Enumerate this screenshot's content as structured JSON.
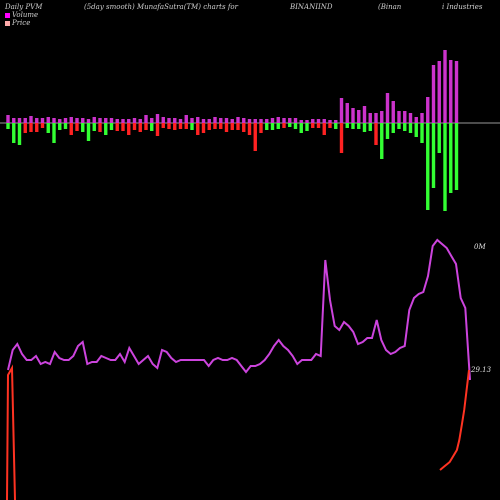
{
  "header": {
    "t1": "Daily PVM",
    "t2": "(5day smooth) MunafaSutra(TM) charts for",
    "t3": "BINANIIND",
    "t4": "(Binan",
    "t5": "i  Industries"
  },
  "legend": {
    "volume_label": "Volume",
    "price_label": "Price"
  },
  "colors": {
    "background": "#000000",
    "volume_legend": "#ff00ff",
    "price_legend": "#ffaaaa",
    "bar_magenta": "#cc33cc",
    "bar_green": "#33ff33",
    "bar_red": "#ff2222",
    "volume_line": "#cc44dd",
    "price_line": "#ff3322",
    "baseline": "#cccccc"
  },
  "chart_data": {
    "type": "bar",
    "title": "Daily PVM (5day smooth) MunafaSutra(TM) charts for BINANIIND (Binani Industries)",
    "up_bars": [
      8,
      5,
      5,
      5,
      7,
      5,
      5,
      6,
      5,
      4,
      5,
      6,
      5,
      5,
      4,
      6,
      5,
      5,
      5,
      4,
      4,
      4,
      5,
      4,
      8,
      5,
      9,
      6,
      5,
      5,
      4,
      8,
      5,
      6,
      4,
      4,
      6,
      5,
      5,
      4,
      6,
      5,
      4,
      4,
      4,
      4,
      5,
      6,
      5,
      5,
      5,
      3,
      3,
      4,
      4,
      4,
      3,
      3,
      25,
      20,
      15,
      13,
      17,
      10,
      10,
      12,
      30,
      22,
      12,
      12,
      10,
      6,
      10,
      26,
      58,
      62,
      73,
      63,
      62
    ],
    "down_bars": [
      6,
      20,
      22,
      10,
      9,
      9,
      5,
      10,
      20,
      7,
      6,
      12,
      8,
      9,
      18,
      8,
      9,
      12,
      7,
      8,
      8,
      12,
      7,
      9,
      7,
      8,
      13,
      5,
      6,
      7,
      6,
      6,
      7,
      12,
      10,
      7,
      6,
      6,
      9,
      7,
      7,
      9,
      12,
      28,
      10,
      7,
      7,
      6,
      5,
      4,
      6,
      10,
      8,
      5,
      5,
      12,
      5,
      6,
      30,
      5,
      6,
      6,
      9,
      8,
      22,
      36,
      16,
      10,
      6,
      8,
      10,
      14,
      20,
      87,
      65,
      30,
      88,
      70,
      67
    ],
    "down_color": [
      "g",
      "g",
      "g",
      "r",
      "r",
      "r",
      "r",
      "g",
      "g",
      "g",
      "g",
      "r",
      "r",
      "g",
      "g",
      "g",
      "r",
      "g",
      "g",
      "r",
      "r",
      "r",
      "r",
      "r",
      "r",
      "g",
      "r",
      "r",
      "r",
      "r",
      "r",
      "r",
      "g",
      "r",
      "r",
      "r",
      "r",
      "r",
      "r",
      "r",
      "r",
      "r",
      "r",
      "r",
      "r",
      "g",
      "g",
      "g",
      "r",
      "g",
      "g",
      "g",
      "g",
      "r",
      "r",
      "r",
      "r",
      "g",
      "r",
      "g",
      "g",
      "g",
      "g",
      "g",
      "r",
      "g",
      "g",
      "g",
      "g",
      "g",
      "g",
      "g",
      "g",
      "g",
      "g",
      "g",
      "g",
      "g",
      "g"
    ],
    "volume_line": [
      75,
      65,
      62,
      67,
      70,
      70,
      68,
      72,
      71,
      72,
      66,
      69,
      70,
      70,
      68,
      63,
      61,
      72,
      71,
      71,
      68,
      69,
      70,
      70,
      67,
      71,
      64,
      68,
      72,
      70,
      68,
      72,
      74,
      65,
      66,
      69,
      71,
      70,
      70,
      70,
      70,
      70,
      70,
      73,
      70,
      69,
      70,
      70,
      69,
      70,
      73,
      76,
      73,
      73,
      72,
      70,
      67,
      63,
      60,
      63,
      65,
      68,
      72,
      70,
      70,
      70,
      67,
      68,
      20,
      40,
      53,
      55,
      51,
      53,
      56,
      62,
      61,
      59,
      59,
      50,
      60,
      65,
      67,
      66,
      64,
      63,
      45,
      39,
      37,
      36,
      28,
      13,
      10,
      12,
      14,
      18,
      22,
      39,
      44,
      80
    ],
    "price_line": [
      10,
      12,
      14,
      16,
      18,
      22,
      26,
      30,
      40,
      55,
      70,
      90,
      110
    ],
    "labels": {
      "volume": "0M",
      "price": "29.13"
    }
  }
}
